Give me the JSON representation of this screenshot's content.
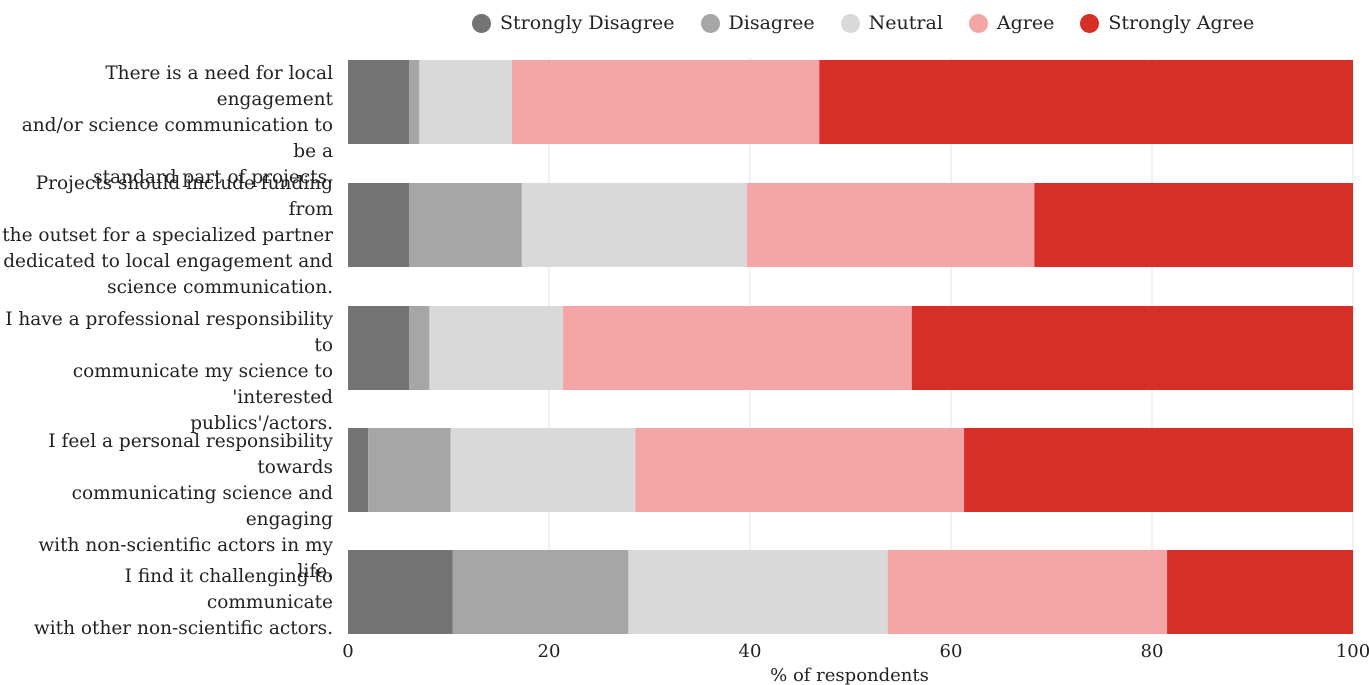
{
  "chart_data": {
    "type": "bar",
    "orientation": "horizontal",
    "stacked": true,
    "categories": [
      "There is a need for local engagement and/or science communication to be a standard part of projects.",
      "Projects should include funding from the outset for a specialized partner dedicated to local engagement and science communication.",
      "I have a professional responsibility to communicate my science to 'interested publics'/actors.",
      "I feel a personal responsibility towards communicating science and engaging with non-scientific actors in my life.",
      "I find it challenging to communicate with other non-scientific actors."
    ],
    "category_lines": [
      [
        "There is a need for local engagement",
        "and/or science communication to be a",
        "standard part of projects."
      ],
      [
        "Projects should include funding from",
        "the outset for a specialized partner",
        "dedicated to local engagement and",
        "science communication."
      ],
      [
        "I have a professional responsibility to",
        "communicate my science to 'interested",
        "publics'/actors."
      ],
      [
        "I feel a personal responsibility towards",
        "communicating science and engaging",
        "with non-scientific actors in my life."
      ],
      [
        "I find it challenging to communicate",
        "with other non-scientific actors."
      ]
    ],
    "series": [
      {
        "name": "Strongly Disagree",
        "color": "#737373",
        "values": [
          6.1,
          6.1,
          6.1,
          2.0,
          10.4
        ]
      },
      {
        "name": "Disagree",
        "color": "#a6a6a6",
        "values": [
          1.0,
          11.2,
          2.0,
          8.2,
          17.5
        ]
      },
      {
        "name": "Neutral",
        "color": "#d9d9d9",
        "values": [
          9.2,
          22.4,
          13.3,
          18.4,
          25.8
        ]
      },
      {
        "name": "Agree",
        "color": "#f4a6a6",
        "values": [
          30.6,
          28.6,
          34.7,
          32.7,
          27.8
        ]
      },
      {
        "name": "Strongly Agree",
        "color": "#d52f27",
        "values": [
          53.1,
          31.7,
          43.9,
          38.7,
          18.5
        ]
      }
    ],
    "xlabel": "% of respondents",
    "xlim": [
      0,
      100
    ],
    "xticks": [
      0,
      20,
      40,
      60,
      80,
      100
    ],
    "grid": "vertical",
    "legend": "top"
  }
}
